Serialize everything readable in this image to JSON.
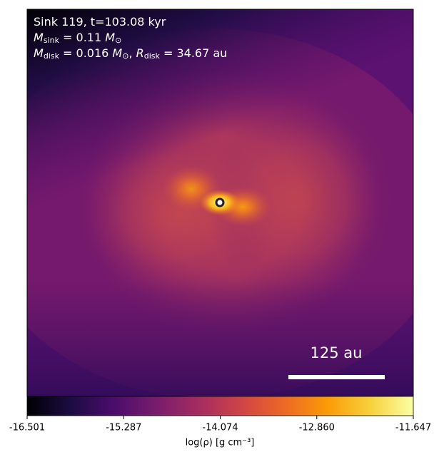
{
  "chart_data": {
    "type": "image",
    "annotation_lines": [
      [
        {
          "text": "Sink 119, t=103.08 kyr"
        }
      ],
      [
        {
          "text": "M",
          "italic": true
        },
        {
          "text": "sink",
          "sub": true
        },
        {
          "text": " = 0.11 "
        },
        {
          "text": "M",
          "italic": true
        },
        {
          "text": "⊙",
          "sub": true
        }
      ],
      [
        {
          "text": "M",
          "italic": true
        },
        {
          "text": "disk",
          "sub": true
        },
        {
          "text": " = 0.016 "
        },
        {
          "text": "M",
          "italic": true
        },
        {
          "text": "⊙",
          "sub": true
        },
        {
          "text": ", "
        },
        {
          "text": "R",
          "italic": true
        },
        {
          "text": "disk",
          "sub": true
        },
        {
          "text": " = 34.67 au"
        }
      ]
    ],
    "scale_bar": {
      "label": "125 au",
      "length": 125
    },
    "colorbar": {
      "label": "log(ρ) [g cm⁻³]",
      "lim": [
        -16.501,
        -11.647
      ],
      "ticks": [
        -16.501,
        -15.287,
        -14.074,
        {
          "value": -12.86,
          "label": "-12.860"
        },
        -11.647
      ],
      "colors": [
        "#000004",
        "#1b0c41",
        "#4a0c6b",
        "#781c6d",
        "#a52c60",
        "#cf4446",
        "#ed6925",
        "#fb9b06",
        "#f7d13d",
        "#fcffa4"
      ]
    }
  }
}
